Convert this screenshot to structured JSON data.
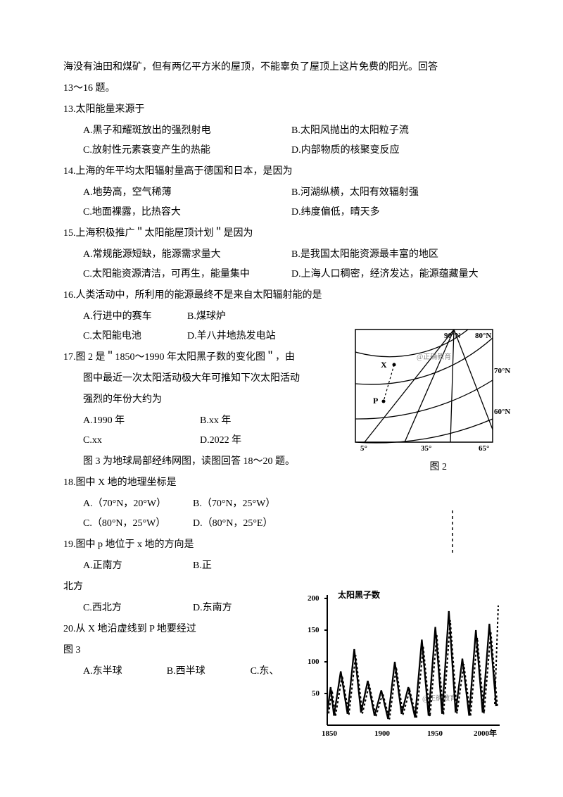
{
  "intro": {
    "line1": "海没有油田和煤矿，但有两亿平方米的屋顶，不能辜负了屋顶上这片免费的阳光。回答",
    "line2": "13～16 题。"
  },
  "q13": {
    "stem": "13.太阳能量来源于",
    "A": "A.黑子和耀斑放出的强烈射电",
    "B": "B.太阳风抛出的太阳粒子流",
    "C": "C.放射性元素衰变产生的热能",
    "D": "D.内部物质的核聚变反应"
  },
  "q14": {
    "stem": "14.上海的年平均太阳辐射量高于德国和日本，是因为",
    "A": "A.地势高，空气稀薄",
    "B": "B.河湖纵横，太阳有效辐射强",
    "C": "C.地面裸露，比热容大",
    "D": "D.纬度偏低，晴天多"
  },
  "q15": {
    "stem": "15.上海积极推广＂太阳能屋顶计划＂是因为",
    "A": "A.常规能源短缺，能源需求量大",
    "B": "B.是我国太阳能资源最丰富的地区",
    "C": "C.太阳能资源清洁，可再生，能量集中",
    "D": "D.上海人口稠密，经济发达，能源蕴藏量大"
  },
  "q16": {
    "stem": "16.人类活动中，所利用的能源最终不是来自太阳辐射能的是",
    "A": "A.行进中的赛车",
    "B": "B.煤球炉",
    "C": "C.太阳能电池",
    "D": "D.羊八井地热发电站"
  },
  "q17": {
    "stem1": "17.图 2 是＂1850～1990 年太阳黑子数的变化图＂，由",
    "stem2": "图中最近一次太阳活动极大年可推知下次太阳活动",
    "stem3": "强烈的年份大约为",
    "A": "A.1990 年",
    "B": "B.xx 年",
    "C": "C.xx",
    "D": "D.2022 年",
    "caption": "图 2"
  },
  "bridge": "图 3 为地球局部经纬网图，读图回答 18～20 题。",
  "q18": {
    "stem": "18.图中 X 地的地理坐标是",
    "A": "A.（70°N，20°W）",
    "B": "B.（70°N，25°W）",
    "C": "C.（80°N，25°W）",
    "D": "D.（80°N，25°E）"
  },
  "q19": {
    "stem": "19.图中 p 地位于 x 地的方向是",
    "A": "A.正南方",
    "B": "B.正",
    "Btail": "北方",
    "C": "C.西北方",
    "D": "D.东南方"
  },
  "q20": {
    "stem": "20.从 X 地沿虚线到 P 地要经过",
    "caption": "图 3",
    "A": "A.东半球",
    "B": "B.西半球",
    "C": "C.东、"
  },
  "globe": {
    "labels": {
      "n90": "90°N",
      "n80": "80°N",
      "n70": "70°N",
      "n60": "60°N",
      "n65": "65°",
      "l5": "5°",
      "l35": "35°",
      "X": "X",
      "P": "P",
      "wm": "@正确教育"
    },
    "stroke": "#000000",
    "bg": "#ffffff"
  },
  "sunspot": {
    "title": "太阳黑子数",
    "ylabels": [
      "200",
      "150",
      "100",
      "50"
    ],
    "xlabels": [
      "1850",
      "1900",
      "1950",
      "2000年"
    ],
    "wm": "@正确教育",
    "axis_color": "#000000",
    "series": [
      [
        0.0,
        20
      ],
      [
        0.02,
        60
      ],
      [
        0.04,
        15
      ],
      [
        0.08,
        85
      ],
      [
        0.12,
        18
      ],
      [
        0.16,
        120
      ],
      [
        0.2,
        20
      ],
      [
        0.24,
        70
      ],
      [
        0.28,
        15
      ],
      [
        0.32,
        55
      ],
      [
        0.36,
        10
      ],
      [
        0.4,
        100
      ],
      [
        0.44,
        18
      ],
      [
        0.48,
        60
      ],
      [
        0.52,
        12
      ],
      [
        0.56,
        135
      ],
      [
        0.6,
        15
      ],
      [
        0.64,
        155
      ],
      [
        0.68,
        18
      ],
      [
        0.72,
        180
      ],
      [
        0.76,
        20
      ],
      [
        0.8,
        105
      ],
      [
        0.84,
        15
      ],
      [
        0.88,
        150
      ],
      [
        0.92,
        20
      ],
      [
        0.96,
        160
      ],
      [
        1.0,
        30
      ]
    ]
  }
}
